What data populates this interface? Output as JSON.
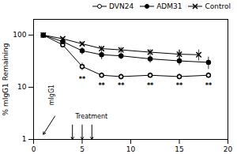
{
  "chart_data": {
    "type": "line",
    "ylabel": "% mIgG1 Remaining",
    "log": "y",
    "grid": false,
    "legend": "upper right",
    "xlim": [
      0,
      20
    ],
    "xticks": [
      0,
      5,
      10,
      15,
      20
    ],
    "ylim": [
      1,
      200
    ],
    "yticks": [
      1,
      10,
      100
    ],
    "series": [
      {
        "name": "DVN24",
        "color": "black",
        "marker": "open_circle",
        "x": [
          1,
          3,
          5,
          7,
          9,
          12,
          15,
          18
        ],
        "values": [
          100,
          65,
          25,
          17,
          16,
          17,
          16,
          17
        ],
        "yerr_lo": [
          0,
          5,
          4,
          2,
          2,
          2,
          2,
          2
        ],
        "yerr_hi": [
          0,
          5,
          4,
          2,
          2,
          2,
          2,
          2
        ]
      },
      {
        "name": "ADM31",
        "color": "black",
        "marker": "circle",
        "x": [
          1,
          3,
          5,
          7,
          9,
          12,
          15,
          18
        ],
        "values": [
          100,
          75,
          50,
          42,
          40,
          35,
          32,
          30
        ],
        "yerr_lo": [
          0,
          6,
          8,
          8,
          6,
          6,
          6,
          8
        ],
        "yerr_hi": [
          0,
          6,
          8,
          8,
          6,
          6,
          20,
          8
        ]
      },
      {
        "name": "Control",
        "color": "black",
        "marker": "x",
        "x": [
          1,
          3,
          5,
          7,
          9,
          12,
          15,
          17
        ],
        "values": [
          100,
          85,
          68,
          55,
          52,
          47,
          43,
          42
        ],
        "yerr_lo": [
          0,
          4,
          6,
          6,
          6,
          6,
          8,
          10
        ],
        "yerr_hi": [
          0,
          4,
          6,
          6,
          6,
          6,
          8,
          10
        ]
      }
    ],
    "annotations": [
      {
        "text": "Treatment",
        "x": 4.3,
        "y": 2.5
      },
      {
        "text": "mIgG1",
        "x": 1.5,
        "y": 4.5,
        "vertical": true
      },
      {
        "text": "**",
        "x": 5,
        "y": 16,
        "bold": true
      },
      {
        "text": "**",
        "x": 7,
        "y": 12,
        "bold": true
      },
      {
        "text": "**",
        "x": 9,
        "y": 12,
        "bold": true
      },
      {
        "text": "**",
        "x": 12,
        "y": 12,
        "bold": true
      },
      {
        "text": "**",
        "x": 15,
        "y": 12,
        "bold": true
      },
      {
        "text": "**",
        "x": 18,
        "y": 12,
        "bold": true
      }
    ],
    "arrows": [
      {
        "x1": 4,
        "y1": 1.9,
        "x2": 4,
        "y2": 1
      },
      {
        "x1": 5,
        "y1": 1.9,
        "x2": 5,
        "y2": 1
      },
      {
        "x1": 6,
        "y1": 1.9,
        "x2": 6,
        "y2": 1
      },
      {
        "x1": 2.2,
        "y1": 2.8,
        "x2": 1,
        "y2": 1.25
      }
    ]
  }
}
